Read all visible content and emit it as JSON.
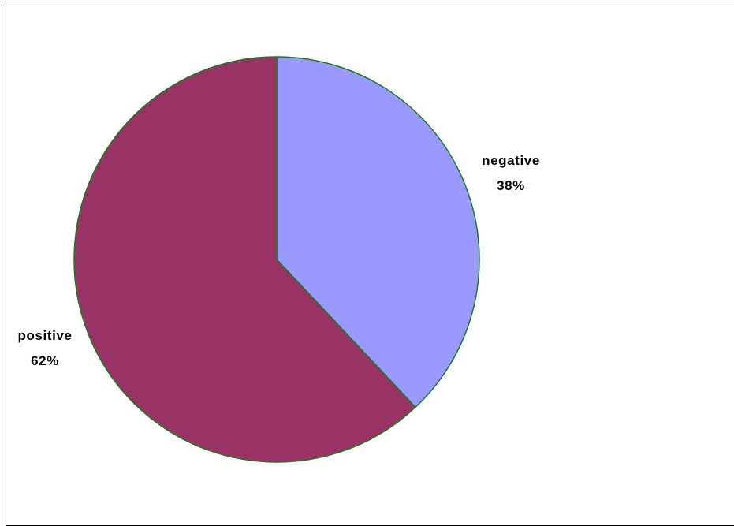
{
  "chart_data": {
    "type": "pie",
    "title": "",
    "legend": "none",
    "categories": [
      "negative",
      "positive"
    ],
    "values": [
      38,
      62
    ],
    "percent_labels": [
      "38%",
      "62%"
    ],
    "colors": [
      "#9999ff",
      "#993366"
    ],
    "edge_color": "#1a7a1a"
  }
}
